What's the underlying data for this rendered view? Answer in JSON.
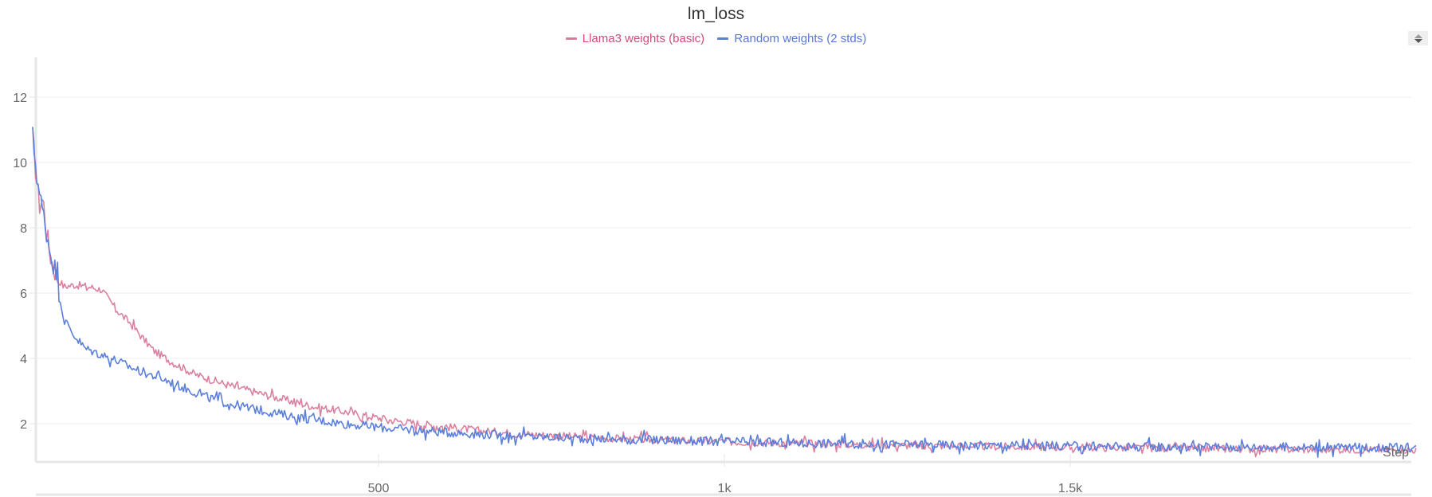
{
  "chart_data": {
    "type": "line",
    "title": "lm_loss",
    "xlabel": "Step",
    "ylabel": "",
    "xlim": [
      0,
      2000
    ],
    "ylim": [
      0.8,
      13.3
    ],
    "grid": true,
    "legend_placement": "top-center",
    "x_ticks": [
      {
        "value": 500,
        "label": "500"
      },
      {
        "value": 1000,
        "label": "1k"
      },
      {
        "value": 1500,
        "label": "1.5k"
      }
    ],
    "y_ticks": [
      {
        "value": 2,
        "label": "2"
      },
      {
        "value": 4,
        "label": "4"
      },
      {
        "value": 6,
        "label": "6"
      },
      {
        "value": 8,
        "label": "8"
      },
      {
        "value": 10,
        "label": "10"
      },
      {
        "value": 12,
        "label": "12"
      }
    ],
    "series": [
      {
        "name": "Llama3 weights (basic)",
        "color": "#d87a9c",
        "label_color": "#cc4d78",
        "x": [
          0,
          5,
          10,
          15,
          20,
          25,
          30,
          35,
          45,
          60,
          80,
          100,
          110,
          125,
          140,
          160,
          175,
          200,
          236,
          280,
          343,
          400,
          458,
          520,
          587,
          650,
          700,
          800,
          900,
          1000,
          1200,
          1400,
          1600,
          1800,
          2000
        ],
        "y": [
          10.8,
          9.6,
          8.7,
          8.9,
          7.9,
          7.2,
          6.8,
          6.5,
          6.2,
          6.25,
          6.2,
          6.1,
          5.8,
          5.4,
          5.1,
          4.6,
          4.24,
          3.9,
          3.5,
          3.2,
          2.85,
          2.55,
          2.34,
          2.1,
          1.93,
          1.78,
          1.7,
          1.58,
          1.5,
          1.45,
          1.36,
          1.3,
          1.26,
          1.22,
          1.2
        ]
      },
      {
        "name": "Random weights (2 stds)",
        "color": "#5b7fdb",
        "label_color": "#5a78d6",
        "x": [
          0,
          5,
          10,
          18,
          25,
          34,
          45,
          60,
          76,
          95,
          114,
          150,
          190,
          230,
          267,
          320,
          382,
          450,
          520,
          587,
          650,
          700,
          800,
          900,
          1000,
          1200,
          1400,
          1600,
          1800,
          2000
        ],
        "y": [
          10.8,
          9.8,
          9.0,
          8.1,
          7.3,
          6.6,
          5.2,
          4.7,
          4.3,
          4.15,
          4.0,
          3.65,
          3.35,
          3.0,
          2.7,
          2.45,
          2.2,
          2.0,
          1.85,
          1.75,
          1.68,
          1.62,
          1.55,
          1.5,
          1.45,
          1.38,
          1.33,
          1.3,
          1.28,
          1.27
        ]
      }
    ]
  },
  "controls": {
    "icon": "sort-updown-icon"
  }
}
